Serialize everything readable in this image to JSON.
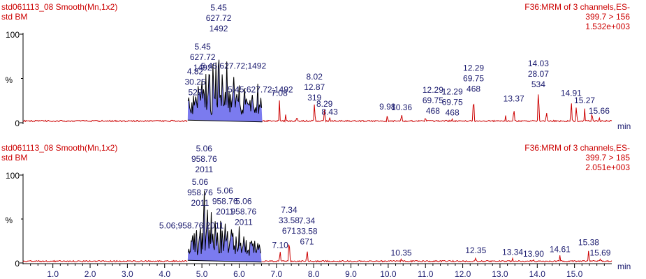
{
  "chart_data": [
    {
      "type": "line",
      "header_left": [
        "std061113_08 Smooth(Mn,1x2)",
        "std BM"
      ],
      "header_right": [
        "F36:MRM of 3 channels,ES-",
        "399.7 > 156",
        "1.532e+003"
      ],
      "ylabel": "%",
      "y_ticks": [
        "100",
        "0"
      ],
      "xlim": [
        0.2,
        16.0
      ],
      "ylim": [
        0,
        100
      ],
      "x_unit": "min",
      "integrated_window": [
        4.62,
        6.62
      ],
      "peaks": [
        {
          "x": 4.82,
          "y": 28
        },
        {
          "x": 4.9,
          "y": 44
        },
        {
          "x": 5.0,
          "y": 56
        },
        {
          "x": 5.1,
          "y": 66
        },
        {
          "x": 5.2,
          "y": 70
        },
        {
          "x": 5.3,
          "y": 78
        },
        {
          "x": 5.38,
          "y": 74
        },
        {
          "x": 5.45,
          "y": 100
        },
        {
          "x": 5.55,
          "y": 76
        },
        {
          "x": 5.67,
          "y": 80
        },
        {
          "x": 5.85,
          "y": 58
        },
        {
          "x": 6.0,
          "y": 47
        },
        {
          "x": 6.15,
          "y": 42
        },
        {
          "x": 6.35,
          "y": 36
        },
        {
          "x": 6.5,
          "y": 48
        },
        {
          "x": 6.58,
          "y": 31
        },
        {
          "x": 7.08,
          "y": 27
        },
        {
          "x": 7.25,
          "y": 10
        },
        {
          "x": 7.55,
          "y": 8
        },
        {
          "x": 8.02,
          "y": 22
        },
        {
          "x": 8.29,
          "y": 15
        },
        {
          "x": 8.43,
          "y": 6
        },
        {
          "x": 9.98,
          "y": 12
        },
        {
          "x": 10.36,
          "y": 11
        },
        {
          "x": 11.0,
          "y": 7
        },
        {
          "x": 11.72,
          "y": 5
        },
        {
          "x": 12.29,
          "y": 32
        },
        {
          "x": 13.15,
          "y": 9
        },
        {
          "x": 13.37,
          "y": 21
        },
        {
          "x": 14.03,
          "y": 37
        },
        {
          "x": 14.25,
          "y": 12
        },
        {
          "x": 14.91,
          "y": 27
        },
        {
          "x": 15.05,
          "y": 20
        },
        {
          "x": 15.27,
          "y": 19
        },
        {
          "x": 15.47,
          "y": 13
        },
        {
          "x": 15.66,
          "y": 7
        }
      ],
      "annotations": [
        {
          "x": 5.45,
          "lines": [
            "5.45",
            "627.72",
            "1492"
          ]
        },
        {
          "x": 5.02,
          "lines": [
            "5.45",
            "627.72",
            "1492"
          ]
        },
        {
          "x": 5.85,
          "lines": [
            "5.45;627.72;1492"
          ]
        },
        {
          "x": 6.57,
          "lines": [
            "5.45;627.72;1492"
          ]
        },
        {
          "x": 4.82,
          "lines": [
            "4.82",
            "30.25",
            "529"
          ]
        },
        {
          "x": 7.08,
          "lines": [
            "7.08"
          ]
        },
        {
          "x": 8.02,
          "lines": [
            "8.02",
            "12.87",
            "319"
          ]
        },
        {
          "x": 8.29,
          "lines": [
            "8.29"
          ]
        },
        {
          "x": 8.43,
          "lines": [
            "8.43"
          ]
        },
        {
          "x": 9.98,
          "lines": [
            "9.98"
          ]
        },
        {
          "x": 10.36,
          "lines": [
            "10.36"
          ]
        },
        {
          "x": 11.2,
          "lines": [
            "12.29",
            "69.75",
            "468"
          ]
        },
        {
          "x": 11.72,
          "lines": [
            "12.29",
            "69.75",
            "468"
          ]
        },
        {
          "x": 12.29,
          "lines": [
            "12.29",
            "69.75",
            "468"
          ]
        },
        {
          "x": 13.37,
          "lines": [
            "13.37"
          ]
        },
        {
          "x": 14.03,
          "lines": [
            "14.03",
            "28.07",
            "534"
          ]
        },
        {
          "x": 14.91,
          "lines": [
            "14.91"
          ]
        },
        {
          "x": 15.27,
          "lines": [
            "15.27"
          ]
        },
        {
          "x": 15.66,
          "lines": [
            "15.66"
          ]
        }
      ]
    },
    {
      "type": "line",
      "header_left": [
        "std061113_08 Smooth(Mn,1x2)",
        "std BM"
      ],
      "header_right": [
        "F36:MRM of 3 channels,ES-",
        "399.7 > 185",
        "2.051e+003"
      ],
      "ylabel": "%",
      "y_ticks": [
        "100",
        "0"
      ],
      "xlim": [
        0.2,
        16.0
      ],
      "ylim": [
        0,
        100
      ],
      "x_unit": "min",
      "integrated_window": [
        4.62,
        6.6
      ],
      "peaks": [
        {
          "x": 4.72,
          "y": 36
        },
        {
          "x": 4.85,
          "y": 48
        },
        {
          "x": 4.95,
          "y": 62
        },
        {
          "x": 5.06,
          "y": 100
        },
        {
          "x": 5.15,
          "y": 70
        },
        {
          "x": 5.25,
          "y": 66
        },
        {
          "x": 5.35,
          "y": 60
        },
        {
          "x": 5.5,
          "y": 56
        },
        {
          "x": 5.62,
          "y": 52
        },
        {
          "x": 5.8,
          "y": 48
        },
        {
          "x": 6.0,
          "y": 44
        },
        {
          "x": 6.12,
          "y": 40
        },
        {
          "x": 6.3,
          "y": 33
        },
        {
          "x": 6.5,
          "y": 24
        },
        {
          "x": 7.1,
          "y": 14
        },
        {
          "x": 7.34,
          "y": 30
        },
        {
          "x": 7.82,
          "y": 18
        },
        {
          "x": 10.35,
          "y": 5
        },
        {
          "x": 12.35,
          "y": 8
        },
        {
          "x": 13.34,
          "y": 6
        },
        {
          "x": 13.9,
          "y": 4
        },
        {
          "x": 14.61,
          "y": 9
        },
        {
          "x": 15.38,
          "y": 17
        },
        {
          "x": 15.69,
          "y": 5
        }
      ],
      "annotations": [
        {
          "x": 5.06,
          "lines": [
            "5.06",
            "958.76",
            "2011"
          ]
        },
        {
          "x": 4.72,
          "lines": [
            "5.06;958.76;2011"
          ]
        },
        {
          "x": 4.95,
          "lines": [
            "5.06",
            "958.76",
            "2011"
          ]
        },
        {
          "x": 5.62,
          "lines": [
            "5.06",
            "958.76",
            "2011"
          ]
        },
        {
          "x": 6.12,
          "lines": [
            "5.06",
            "958.76",
            "2011"
          ]
        },
        {
          "x": 7.34,
          "lines": [
            "7.34",
            "33.58",
            "671"
          ]
        },
        {
          "x": 7.82,
          "lines": [
            "7.34",
            "33.58",
            "671"
          ]
        },
        {
          "x": 7.1,
          "lines": [
            "7.10"
          ]
        },
        {
          "x": 10.35,
          "lines": [
            "10.35"
          ]
        },
        {
          "x": 12.35,
          "lines": [
            "12.35"
          ]
        },
        {
          "x": 13.34,
          "lines": [
            "13.34"
          ]
        },
        {
          "x": 13.9,
          "lines": [
            "13.90"
          ]
        },
        {
          "x": 14.61,
          "lines": [
            "14.61"
          ]
        },
        {
          "x": 15.38,
          "lines": [
            "15.38"
          ]
        },
        {
          "x": 15.69,
          "lines": [
            "15.69"
          ]
        }
      ]
    }
  ],
  "x_ticks": [
    "1.0",
    "2.0",
    "3.0",
    "4.0",
    "5.0",
    "6.0",
    "7.0",
    "8.0",
    "9.0",
    "10.0",
    "11.0",
    "12.0",
    "13.0",
    "14.0",
    "15.0"
  ],
  "colors": {
    "trace": "#cc0000",
    "integrated": "#000000",
    "fill": "#7b7bef",
    "annotation": "#1a1a6e",
    "header": "#cc0000",
    "axis": "#000000"
  }
}
